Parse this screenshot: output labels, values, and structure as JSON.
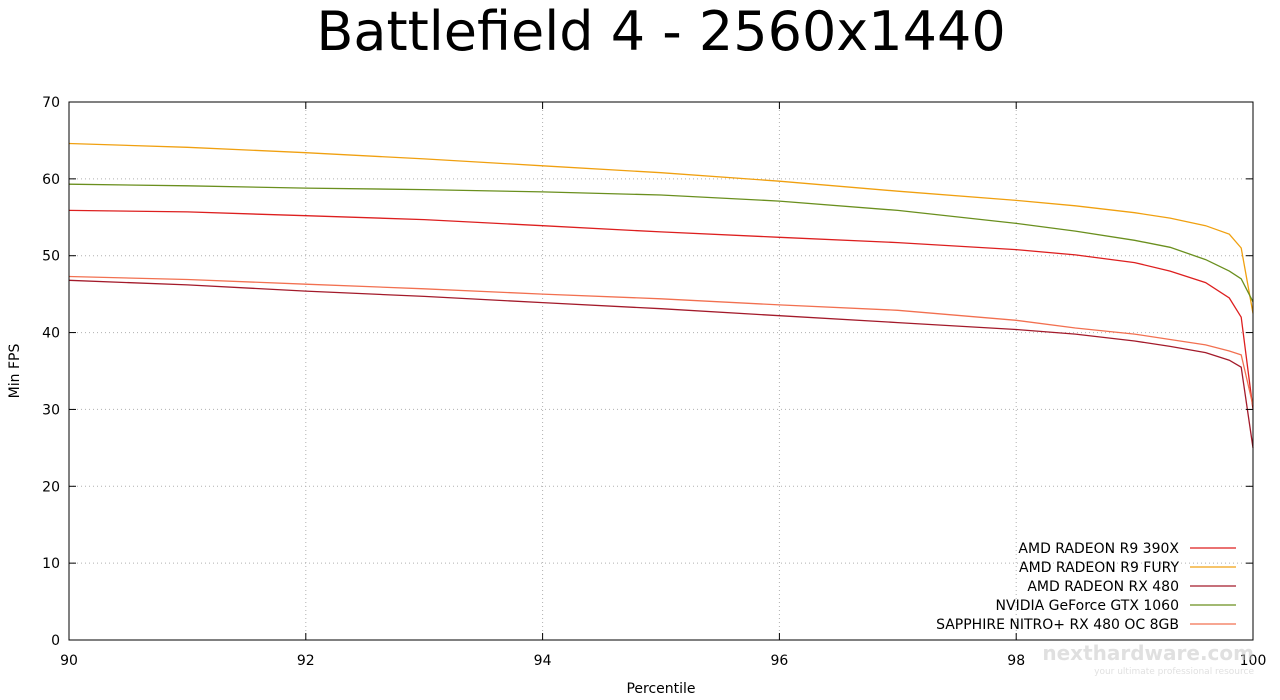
{
  "chart_data": {
    "type": "line",
    "title": "Battlefield 4 - 2560x1440",
    "xlabel": "Percentile",
    "ylabel": "Min FPS",
    "xlim": [
      90,
      100
    ],
    "ylim": [
      0,
      70
    ],
    "xticks": [
      90,
      92,
      94,
      96,
      98,
      100
    ],
    "yticks": [
      0,
      10,
      20,
      30,
      40,
      50,
      60,
      70
    ],
    "grid": true,
    "legend_position": "bottom-right",
    "series": [
      {
        "name": "AMD RADEON R9 390X",
        "color": "#dd1f1f",
        "x": [
          90,
          91,
          92,
          93,
          94,
          95,
          96,
          97,
          98,
          98.5,
          99,
          99.3,
          99.6,
          99.8,
          99.9,
          100
        ],
        "y": [
          55.9,
          55.7,
          55.2,
          54.7,
          53.9,
          53.1,
          52.4,
          51.7,
          50.8,
          50.1,
          49.1,
          48.0,
          46.5,
          44.5,
          42.0,
          30.0
        ]
      },
      {
        "name": "AMD RADEON R9 FURY",
        "color": "#f0a010",
        "x": [
          90,
          91,
          92,
          93,
          94,
          95,
          96,
          97,
          98,
          98.5,
          99,
          99.3,
          99.6,
          99.8,
          99.9,
          100
        ],
        "y": [
          64.6,
          64.1,
          63.4,
          62.6,
          61.7,
          60.8,
          59.7,
          58.4,
          57.2,
          56.5,
          55.6,
          54.9,
          53.9,
          52.8,
          51.0,
          42.5
        ]
      },
      {
        "name": "AMD RADEON RX 480",
        "color": "#a31a2a",
        "x": [
          90,
          91,
          92,
          93,
          94,
          95,
          96,
          97,
          98,
          98.5,
          99,
          99.3,
          99.6,
          99.8,
          99.9,
          100
        ],
        "y": [
          46.8,
          46.2,
          45.4,
          44.7,
          43.9,
          43.1,
          42.2,
          41.3,
          40.4,
          39.8,
          38.9,
          38.2,
          37.4,
          36.4,
          35.5,
          25.0
        ]
      },
      {
        "name": "NVIDIA GeForce GTX 1060",
        "color": "#6a8f1e",
        "x": [
          90,
          91,
          92,
          93,
          94,
          95,
          96,
          97,
          98,
          98.5,
          99,
          99.3,
          99.6,
          99.8,
          99.9,
          100
        ],
        "y": [
          59.3,
          59.1,
          58.8,
          58.6,
          58.3,
          57.9,
          57.1,
          55.9,
          54.2,
          53.2,
          52.0,
          51.1,
          49.5,
          48.0,
          47.0,
          44.0
        ]
      },
      {
        "name": "SAPPHIRE NITRO+ RX 480 OC 8GB",
        "color": "#f27050",
        "x": [
          90,
          91,
          92,
          93,
          94,
          95,
          96,
          97,
          98,
          98.5,
          99,
          99.3,
          99.6,
          99.8,
          99.9,
          100
        ],
        "y": [
          47.3,
          46.9,
          46.3,
          45.7,
          45.0,
          44.4,
          43.6,
          42.9,
          41.6,
          40.6,
          39.8,
          39.1,
          38.4,
          37.6,
          37.1,
          30.5
        ]
      }
    ]
  },
  "watermark": {
    "brand": "nexthardware.com",
    "tagline": "your ultimate professional resource"
  }
}
